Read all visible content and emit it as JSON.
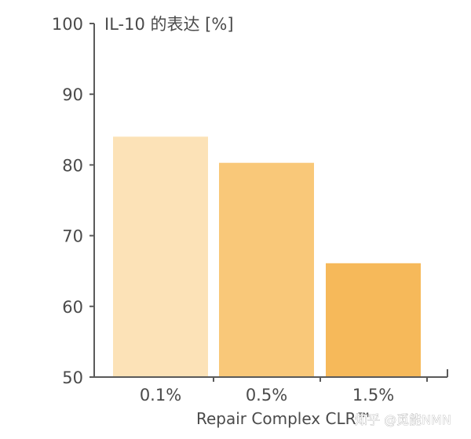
{
  "chart_data": {
    "type": "bar",
    "ylabel": "IL-10 的表达 [%]",
    "xlabel": "Repair Complex CLR™",
    "categories": [
      "0.1%",
      "0.5%",
      "1.5%"
    ],
    "values": [
      84,
      80.3,
      66.1
    ],
    "ylim": [
      50,
      100
    ],
    "yticks": [
      50,
      60,
      70,
      80,
      90,
      100
    ],
    "grid": false,
    "legend": "none",
    "colors": [
      "#fce2b7",
      "#f9c879",
      "#f6b95a"
    ],
    "axis_color": "#5a5a5a"
  },
  "watermark": "知乎 @觅能NMN"
}
